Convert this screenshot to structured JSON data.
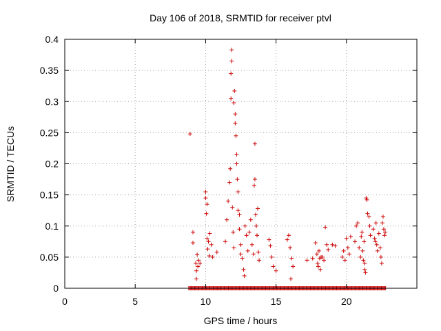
{
  "chart_data": {
    "type": "scatter",
    "title": "Day 106 of 2018, SRMTID for receiver ptvl",
    "xlabel": "GPS time / hours",
    "ylabel": "SRMTID / TECUs",
    "xlim": [
      0,
      25
    ],
    "ylim": [
      0,
      0.4
    ],
    "xticks": [
      "0",
      "5",
      "10",
      "15",
      "20"
    ],
    "xtick_values": [
      0,
      5,
      10,
      15,
      20
    ],
    "yticks": [
      "0",
      "0.05",
      "0.1",
      "0.15",
      "0.2",
      "0.25",
      "0.3",
      "0.35",
      "0.4"
    ],
    "ytick_values": [
      0,
      0.05,
      0.1,
      0.15,
      0.2,
      0.25,
      0.3,
      0.35,
      0.4
    ],
    "grid": true,
    "marker": "+",
    "series": [
      {
        "name": "SRMTID",
        "color": "#cc0000",
        "points": [
          [
            8.9,
            0.248
          ],
          [
            9.1,
            0.09
          ],
          [
            9.1,
            0.073
          ],
          [
            9.3,
            0.04
          ],
          [
            9.35,
            0.028
          ],
          [
            9.4,
            0.054
          ],
          [
            9.45,
            0.035
          ],
          [
            9.5,
            0.045
          ],
          [
            9.6,
            0.04
          ],
          [
            9.35,
            0.015
          ],
          [
            10.0,
            0.155
          ],
          [
            10.0,
            0.145
          ],
          [
            10.1,
            0.135
          ],
          [
            10.05,
            0.12
          ],
          [
            10.1,
            0.08
          ],
          [
            10.2,
            0.075
          ],
          [
            10.15,
            0.063
          ],
          [
            10.3,
            0.088
          ],
          [
            10.25,
            0.052
          ],
          [
            10.4,
            0.07
          ],
          [
            10.5,
            0.05
          ],
          [
            10.8,
            0.058
          ],
          [
            11.4,
            0.075
          ],
          [
            11.5,
            0.11
          ],
          [
            11.6,
            0.14
          ],
          [
            11.7,
            0.17
          ],
          [
            11.75,
            0.192
          ],
          [
            11.8,
            0.305
          ],
          [
            11.8,
            0.345
          ],
          [
            11.85,
            0.365
          ],
          [
            11.85,
            0.383
          ],
          [
            11.9,
            0.13
          ],
          [
            11.95,
            0.09
          ],
          [
            12.0,
            0.065
          ],
          [
            12.0,
            0.298
          ],
          [
            12.05,
            0.317
          ],
          [
            12.1,
            0.28
          ],
          [
            12.1,
            0.265
          ],
          [
            12.15,
            0.245
          ],
          [
            12.2,
            0.215
          ],
          [
            12.2,
            0.2
          ],
          [
            12.25,
            0.175
          ],
          [
            12.3,
            0.155
          ],
          [
            12.3,
            0.125
          ],
          [
            12.4,
            0.118
          ],
          [
            12.4,
            0.095
          ],
          [
            12.5,
            0.07
          ],
          [
            12.5,
            0.055
          ],
          [
            12.6,
            0.048
          ],
          [
            12.7,
            0.03
          ],
          [
            12.75,
            0.02
          ],
          [
            12.8,
            0.1
          ],
          [
            12.9,
            0.085
          ],
          [
            13.0,
            0.06
          ],
          [
            13.1,
            0.09
          ],
          [
            13.2,
            0.11
          ],
          [
            13.3,
            0.07
          ],
          [
            13.4,
            0.055
          ],
          [
            13.5,
            0.232
          ],
          [
            13.5,
            0.175
          ],
          [
            13.45,
            0.165
          ],
          [
            13.55,
            0.118
          ],
          [
            13.6,
            0.1
          ],
          [
            13.65,
            0.085
          ],
          [
            13.7,
            0.128
          ],
          [
            13.75,
            0.058
          ],
          [
            13.8,
            0.045
          ],
          [
            14.5,
            0.078
          ],
          [
            14.6,
            0.068
          ],
          [
            14.7,
            0.05
          ],
          [
            14.8,
            0.035
          ],
          [
            15.0,
            0.028
          ],
          [
            15.8,
            0.078
          ],
          [
            15.9,
            0.085
          ],
          [
            16.0,
            0.065
          ],
          [
            16.1,
            0.048
          ],
          [
            16.2,
            0.035
          ],
          [
            16.05,
            0.015
          ],
          [
            17.2,
            0.045
          ],
          [
            17.6,
            0.048
          ],
          [
            17.8,
            0.073
          ],
          [
            17.9,
            0.055
          ],
          [
            17.95,
            0.04
          ],
          [
            18.0,
            0.035
          ],
          [
            18.05,
            0.06
          ],
          [
            18.1,
            0.048
          ],
          [
            18.15,
            0.03
          ],
          [
            18.2,
            0.05
          ],
          [
            18.3,
            0.05
          ],
          [
            18.4,
            0.045
          ],
          [
            18.5,
            0.098
          ],
          [
            18.6,
            0.07
          ],
          [
            18.7,
            0.062
          ],
          [
            19.0,
            0.07
          ],
          [
            19.2,
            0.068
          ],
          [
            19.7,
            0.05
          ],
          [
            19.8,
            0.06
          ],
          [
            19.9,
            0.045
          ],
          [
            20.0,
            0.08
          ],
          [
            20.1,
            0.065
          ],
          [
            20.2,
            0.055
          ],
          [
            20.3,
            0.083
          ],
          [
            20.6,
            0.075
          ],
          [
            20.7,
            0.1
          ],
          [
            20.8,
            0.105
          ],
          [
            20.9,
            0.065
          ],
          [
            21.0,
            0.05
          ],
          [
            21.05,
            0.083
          ],
          [
            21.1,
            0.09
          ],
          [
            21.15,
            0.06
          ],
          [
            21.2,
            0.045
          ],
          [
            21.25,
            0.075
          ],
          [
            21.3,
            0.04
          ],
          [
            21.3,
            0.03
          ],
          [
            21.35,
            0.025
          ],
          [
            21.4,
            0.145
          ],
          [
            21.45,
            0.142
          ],
          [
            21.5,
            0.12
          ],
          [
            21.6,
            0.115
          ],
          [
            21.65,
            0.1
          ],
          [
            21.7,
            0.085
          ],
          [
            21.9,
            0.095
          ],
          [
            22.0,
            0.08
          ],
          [
            22.05,
            0.075
          ],
          [
            22.1,
            0.105
          ],
          [
            22.15,
            0.07
          ],
          [
            22.2,
            0.06
          ],
          [
            22.3,
            0.088
          ],
          [
            22.4,
            0.065
          ],
          [
            22.45,
            0.05
          ],
          [
            22.5,
            0.04
          ],
          [
            22.55,
            0.105
          ],
          [
            22.6,
            0.115
          ],
          [
            22.65,
            0.095
          ],
          [
            22.7,
            0.085
          ],
          [
            22.75,
            0.09
          ]
        ],
        "zero_line_ranges": [
          [
            8.8,
            22.8
          ]
        ]
      }
    ]
  }
}
